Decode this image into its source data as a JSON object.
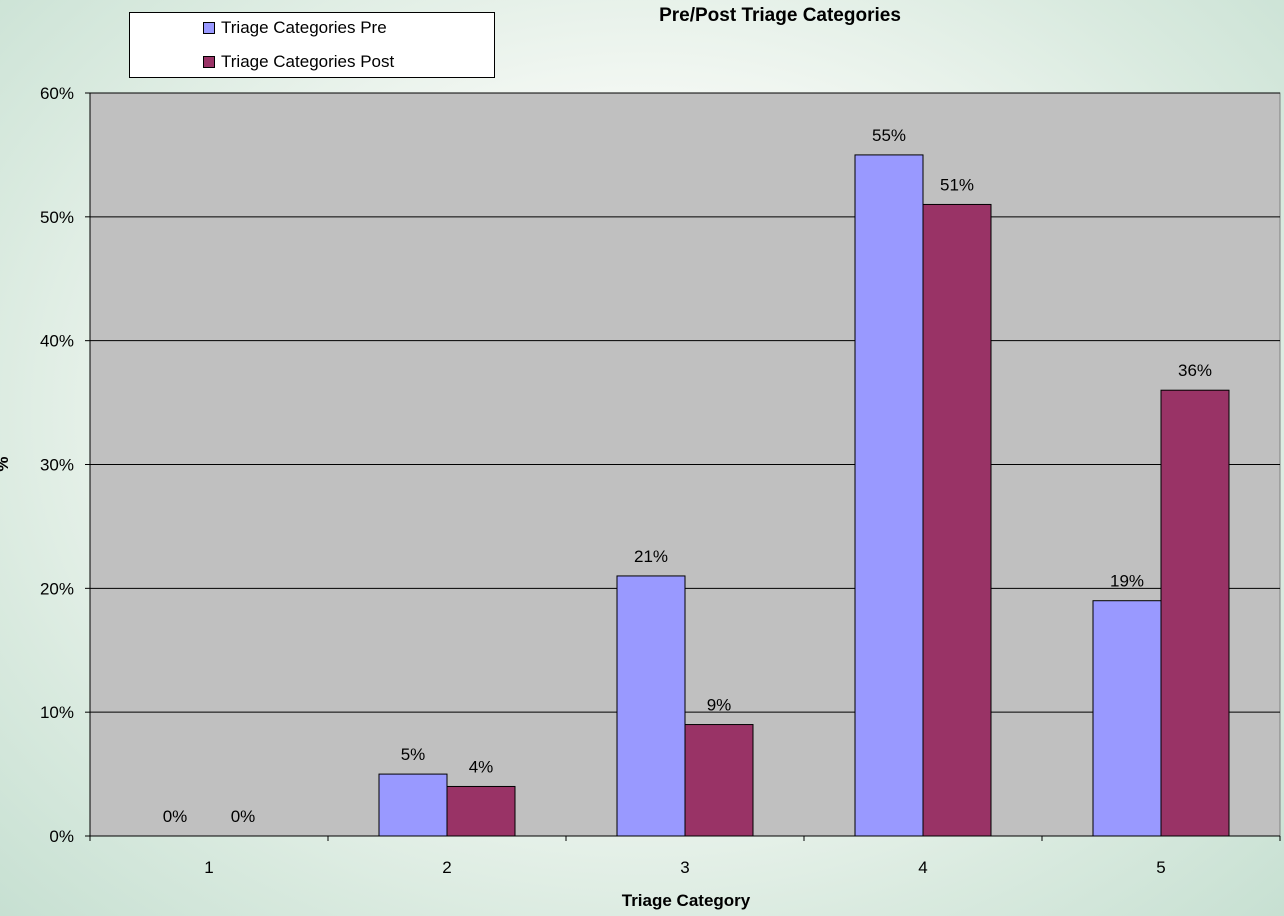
{
  "chart_data": {
    "type": "bar",
    "title": "Pre/Post Triage Categories",
    "xlabel": "Triage Category",
    "ylabel": "%",
    "categories": [
      "1",
      "2",
      "3",
      "4",
      "5"
    ],
    "ylim": [
      0,
      60
    ],
    "yticks": [
      0,
      10,
      20,
      30,
      40,
      50,
      60
    ],
    "ytick_labels": [
      "0%",
      "10%",
      "20%",
      "30%",
      "40%",
      "50%",
      "60%"
    ],
    "grid": true,
    "legend_position": "top-left",
    "series": [
      {
        "name": "Triage Categories Pre",
        "color": "#9999ff",
        "values": [
          0,
          5,
          21,
          55,
          19
        ],
        "labels": [
          "0%",
          "5%",
          "21%",
          "55%",
          "19%"
        ]
      },
      {
        "name": "Triage Categories Post",
        "color": "#993366",
        "values": [
          0,
          4,
          9,
          51,
          36
        ],
        "labels": [
          "0%",
          "4%",
          "9%",
          "51%",
          "36%"
        ]
      }
    ]
  }
}
